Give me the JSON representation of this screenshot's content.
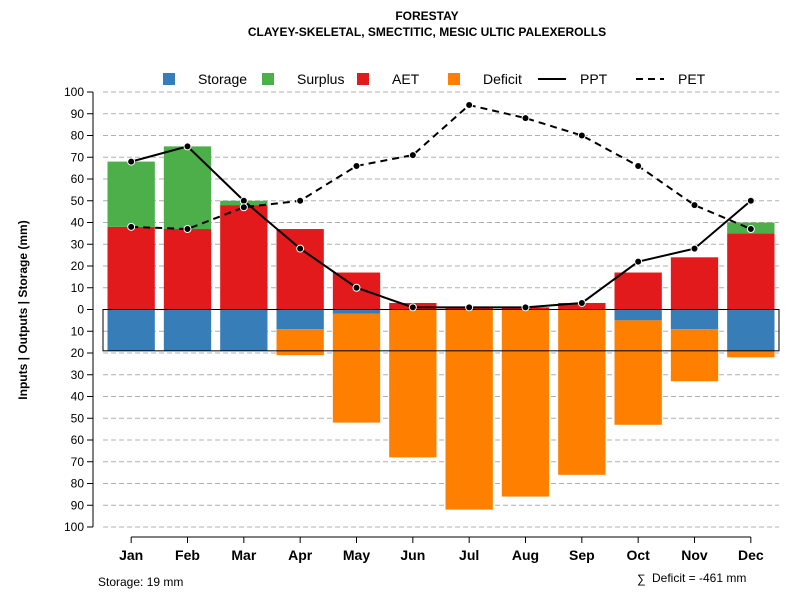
{
  "chart_data": {
    "type": "bar",
    "title": "FORESTAY",
    "subtitle": "CLAYEY-SKELETAL, SMECTITIC, MESIC ULTIC PALEXEROLLS",
    "ylabel": "Inputs | Outputs | Storage    (mm)",
    "ylim": [
      -100,
      100
    ],
    "y_ticks": [
      100,
      90,
      80,
      70,
      60,
      50,
      40,
      30,
      20,
      10,
      0,
      -10,
      -20,
      -30,
      -40,
      -50,
      -60,
      -70,
      -80,
      -90,
      -100
    ],
    "y_tick_labels": [
      "100",
      "90",
      "80",
      "70",
      "60",
      "50",
      "40",
      "30",
      "20",
      "10",
      "0",
      "10",
      "20",
      "30",
      "40",
      "50",
      "60",
      "70",
      "80",
      "90",
      "100"
    ],
    "grid": "horizontal dashed",
    "legend_position": "top",
    "categories": [
      "Jan",
      "Feb",
      "Mar",
      "Apr",
      "May",
      "Jun",
      "Jul",
      "Aug",
      "Sep",
      "Oct",
      "Nov",
      "Dec"
    ],
    "series": [
      {
        "name": "AET",
        "color": "#e31a1c",
        "values": [
          38,
          37,
          48,
          37,
          17,
          3,
          1,
          1,
          3,
          17,
          24,
          35
        ]
      },
      {
        "name": "Surplus",
        "color": "#4daf4a",
        "values": [
          30,
          38,
          2,
          0,
          0,
          0,
          0,
          0,
          0,
          0,
          0,
          5
        ]
      },
      {
        "name": "Storage",
        "color": "#377eb8",
        "values": [
          -19,
          -19,
          -19,
          -9,
          -2,
          0,
          0,
          0,
          0,
          -5,
          -9,
          -19
        ]
      },
      {
        "name": "Deficit",
        "color": "#ff7f00",
        "values": [
          0,
          0,
          0,
          -12,
          -50,
          -68,
          -92,
          -86,
          -76,
          -48,
          -24,
          -3
        ]
      },
      {
        "name": "PPT",
        "style": "solid",
        "color": "#000000",
        "values": [
          68,
          75,
          50,
          28,
          10,
          1,
          1,
          1,
          3,
          22,
          28,
          50
        ]
      },
      {
        "name": "PET",
        "style": "dashed",
        "color": "#000000",
        "values": [
          38,
          37,
          47,
          50,
          66,
          71,
          94,
          88,
          80,
          66,
          48,
          37
        ]
      }
    ],
    "legend": [
      {
        "label": "Storage",
        "kind": "box",
        "color": "#377eb8"
      },
      {
        "label": "Surplus",
        "kind": "box",
        "color": "#4daf4a"
      },
      {
        "label": "AET",
        "kind": "box",
        "color": "#e31a1c"
      },
      {
        "label": "Deficit",
        "kind": "box",
        "color": "#ff7f00"
      },
      {
        "label": "PPT",
        "kind": "solid-line",
        "color": "#000000"
      },
      {
        "label": "PET",
        "kind": "dashed-line",
        "color": "#000000"
      }
    ],
    "storage_box_value": -19,
    "annotations": {
      "storage": "Storage: 19 mm",
      "deficit_symbol": "∑",
      "deficit": "Deficit = -461 mm"
    }
  }
}
